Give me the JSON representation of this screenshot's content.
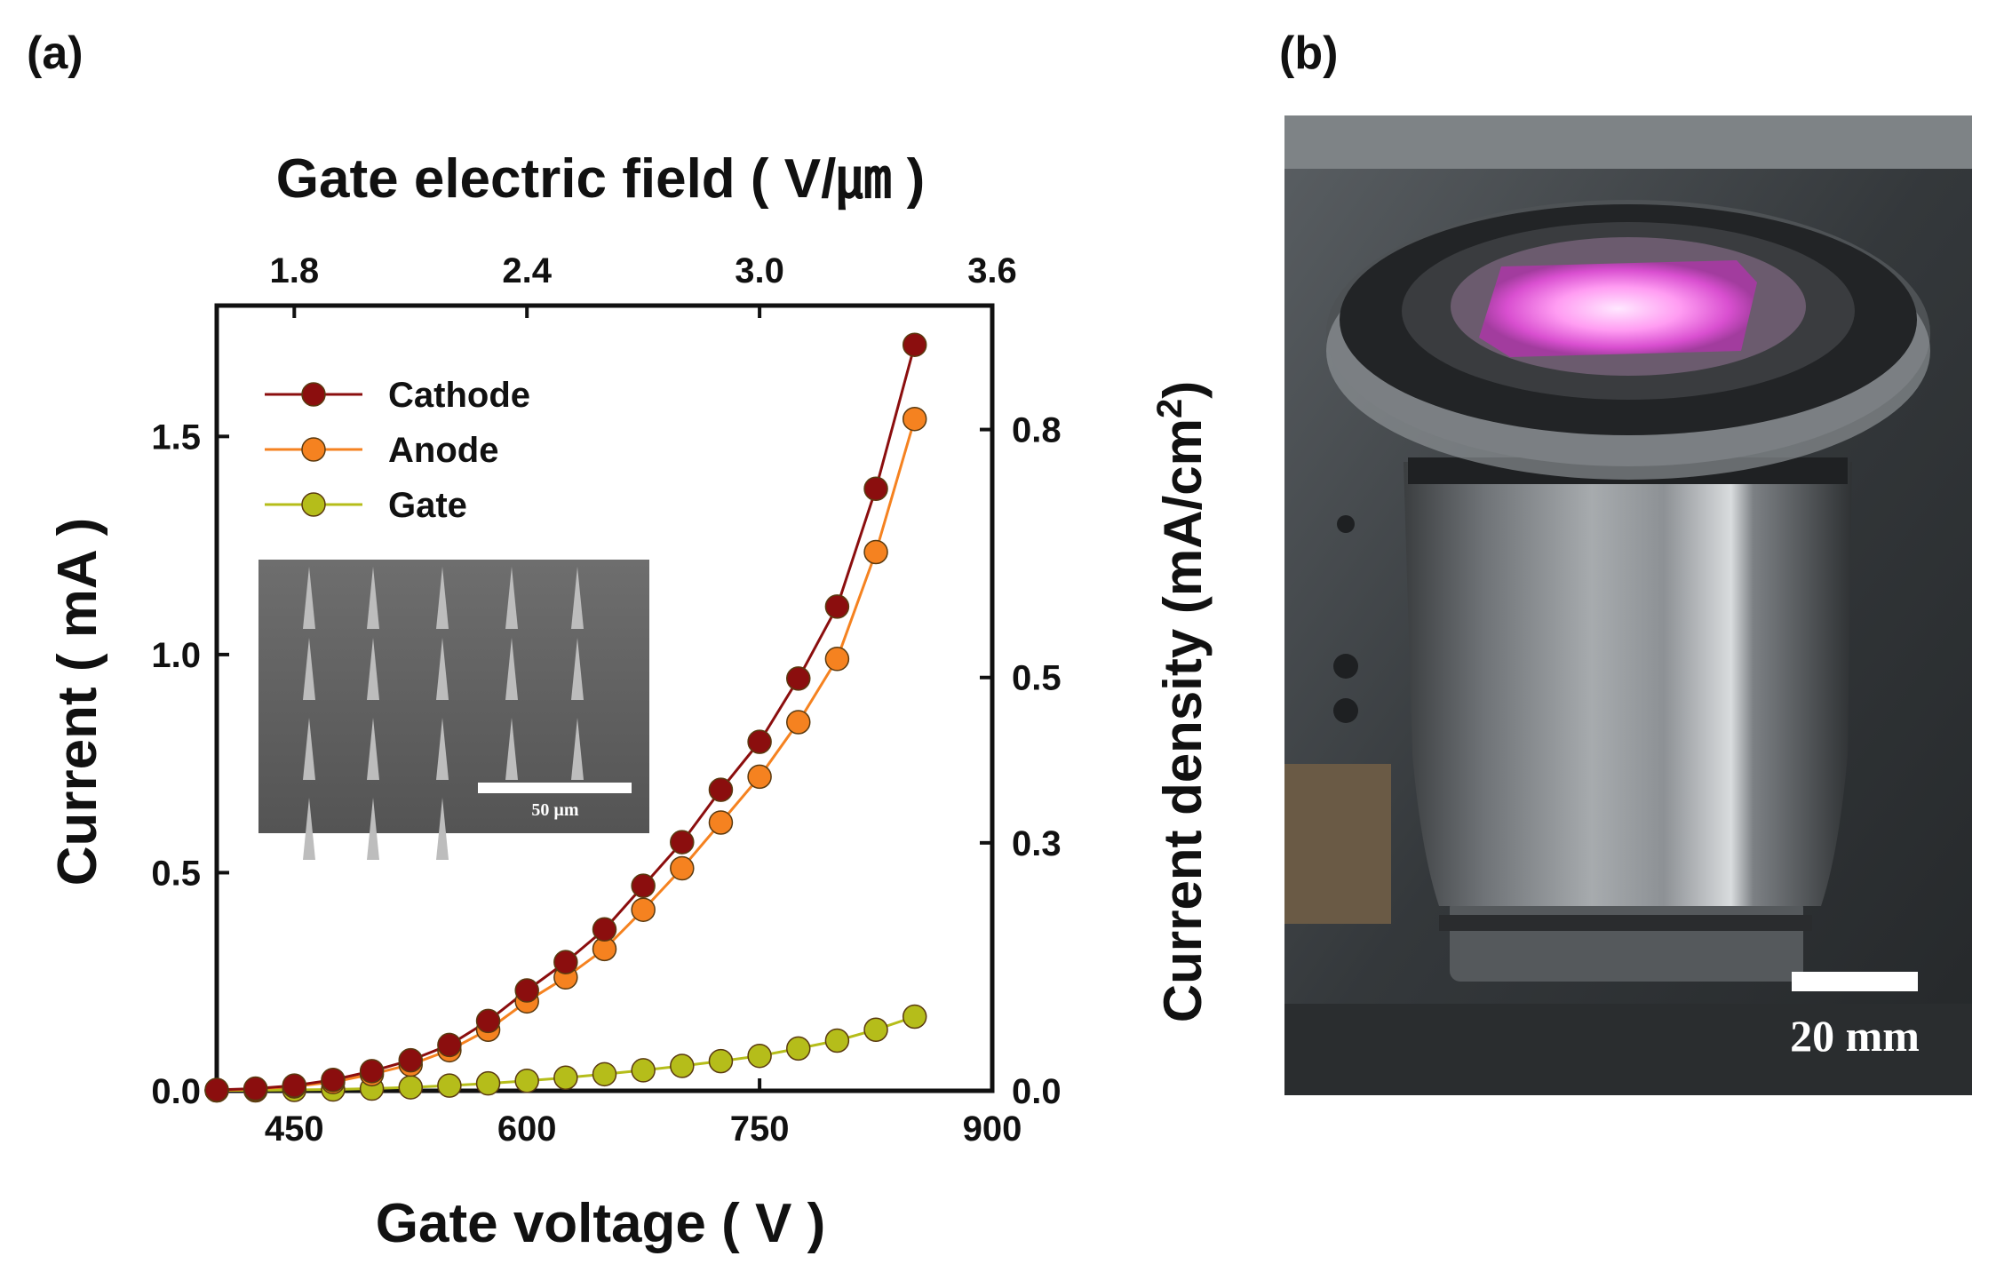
{
  "panels": {
    "a_label": "(a)",
    "b_label": "(b)"
  },
  "chart_data": {
    "type": "line",
    "title": "",
    "xlabel": "Gate voltage ( V )",
    "ylabel": "Current ( mA )",
    "x2label": "Gate electric field ( V/㎛ )",
    "y2label": "Current density (mA/cm",
    "y2label_sup": "2",
    "y2label_end": ")",
    "xlim": [
      400,
      900
    ],
    "ylim": [
      0,
      1.8
    ],
    "x_ticks": [
      450,
      600,
      750,
      900
    ],
    "y_ticks": [
      0.0,
      0.5,
      1.0,
      1.5
    ],
    "y_tick_labels": [
      "0.0",
      "0.5",
      "1.0",
      "1.5"
    ],
    "x2_ticks": [
      1.8,
      2.4,
      3.0,
      3.6
    ],
    "x2_tick_labels": [
      "1.8",
      "2.4",
      "3.0",
      "3.6"
    ],
    "x2_lim": [
      1.6,
      3.6
    ],
    "y2_ticks": [
      0.0,
      0.3,
      0.5,
      0.8
    ],
    "y2_tick_labels": [
      "0.0",
      "0.3",
      "0.5",
      "0.8"
    ],
    "y2_lim": [
      0,
      0.95
    ],
    "legend_position": "top-left",
    "grid": false,
    "x": [
      400,
      425,
      450,
      475,
      500,
      525,
      550,
      575,
      600,
      625,
      650,
      675,
      700,
      725,
      750,
      775,
      800,
      825,
      850
    ],
    "series": [
      {
        "name": "Cathode",
        "color": "#8b0e0e",
        "values": [
          0.002,
          0.005,
          0.012,
          0.025,
          0.045,
          0.07,
          0.105,
          0.16,
          0.23,
          0.295,
          0.37,
          0.47,
          0.57,
          0.69,
          0.8,
          0.945,
          1.11,
          1.38,
          1.71
        ]
      },
      {
        "name": "Anode",
        "color": "#f58220",
        "values": [
          0.001,
          0.004,
          0.01,
          0.02,
          0.038,
          0.06,
          0.093,
          0.14,
          0.205,
          0.26,
          0.325,
          0.415,
          0.51,
          0.615,
          0.72,
          0.845,
          0.99,
          1.235,
          1.54
        ]
      },
      {
        "name": "Gate",
        "color": "#b5bd1a",
        "values": [
          0.001,
          0.001,
          0.002,
          0.003,
          0.005,
          0.008,
          0.012,
          0.017,
          0.023,
          0.03,
          0.038,
          0.047,
          0.057,
          0.068,
          0.08,
          0.097,
          0.115,
          0.14,
          0.17
        ]
      }
    ]
  },
  "inset": {
    "scale_label": "50 µm"
  },
  "photo": {
    "scale_label": "20 mm"
  }
}
